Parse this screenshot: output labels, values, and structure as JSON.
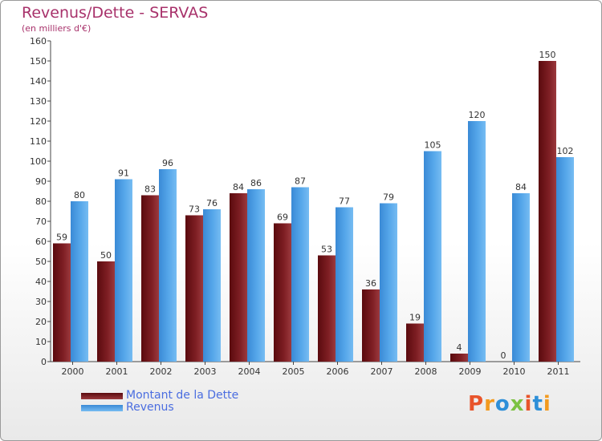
{
  "chart_data": {
    "type": "bar",
    "title": "Revenus/Dette - SERVAS",
    "subtitle": "(en milliers d'€)",
    "categories": [
      "2000",
      "2001",
      "2002",
      "2003",
      "2004",
      "2005",
      "2006",
      "2007",
      "2008",
      "2009",
      "2010",
      "2011"
    ],
    "series": [
      {
        "name": "Montant de la Dette",
        "values": [
          59,
          50,
          83,
          73,
          84,
          69,
          53,
          36,
          19,
          4,
          0,
          150
        ],
        "color": "#7a1a1e"
      },
      {
        "name": "Revenus",
        "values": [
          80,
          91,
          96,
          76,
          86,
          87,
          77,
          79,
          105,
          120,
          84,
          102
        ],
        "color": "#4f9fe0"
      }
    ],
    "ylim": [
      0,
      160
    ],
    "yticks": [
      0,
      10,
      20,
      30,
      40,
      50,
      60,
      70,
      80,
      90,
      100,
      110,
      120,
      130,
      140,
      150,
      160
    ],
    "grid": false,
    "legend_position": "bottom-left"
  },
  "logo": {
    "text": "Proxiti",
    "colors": [
      "#e8542b",
      "#f39a1e",
      "#2e8fd8",
      "#7cc242",
      "#e8542b",
      "#2e8fd8",
      "#f39a1e"
    ]
  }
}
